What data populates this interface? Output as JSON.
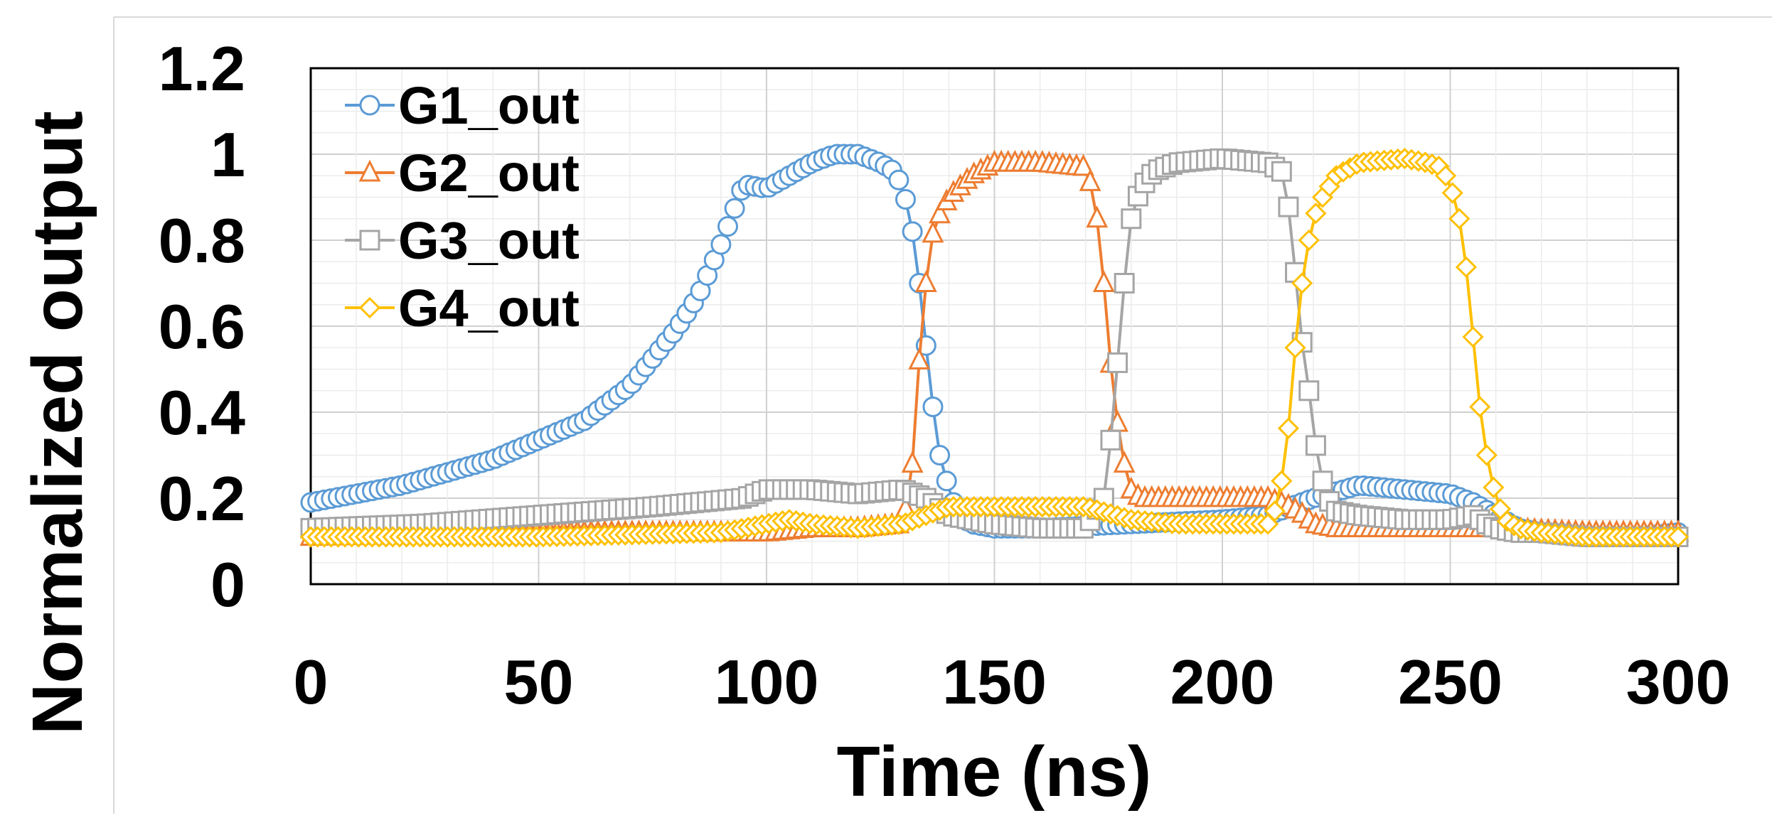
{
  "chart_data": {
    "type": "line",
    "title": "",
    "xlabel": "Time (ns)",
    "ylabel": "Normalized output",
    "xlim": [
      0,
      300
    ],
    "ylim": [
      0,
      1.2
    ],
    "xticks": [
      0,
      50,
      100,
      150,
      200,
      250,
      300
    ],
    "xtick_labels": [
      "0",
      "50",
      "100",
      "150",
      "200",
      "250",
      "300"
    ],
    "yticks": [
      0,
      0.2,
      0.4,
      0.6,
      0.8,
      1,
      1.2
    ],
    "ytick_labels": [
      "0",
      "0.2",
      "0.4",
      "0.6",
      "0.8",
      "1",
      "1.2"
    ],
    "grid": true,
    "legend_position": "top-left",
    "series": [
      {
        "name": "G1_out",
        "color": "#5b9bd5",
        "marker": "circle",
        "x": [
          0,
          20,
          40,
          60,
          70,
          80,
          85,
          90,
          95,
          100,
          105,
          110,
          115,
          120,
          125,
          128,
          130,
          132,
          134,
          136,
          138,
          140,
          142,
          145,
          150,
          160,
          180,
          200,
          210,
          215,
          220,
          230,
          240,
          250,
          255,
          260,
          265,
          270,
          280,
          290,
          300
        ],
        "y": [
          0.19,
          0.23,
          0.29,
          0.38,
          0.46,
          0.59,
          0.67,
          0.79,
          0.93,
          0.92,
          0.95,
          0.98,
          1.0,
          1.0,
          0.98,
          0.96,
          0.92,
          0.82,
          0.66,
          0.45,
          0.3,
          0.22,
          0.16,
          0.14,
          0.13,
          0.13,
          0.14,
          0.15,
          0.16,
          0.18,
          0.2,
          0.23,
          0.22,
          0.21,
          0.19,
          0.16,
          0.13,
          0.12,
          0.11,
          0.11,
          0.12
        ]
      },
      {
        "name": "G2_out",
        "color": "#ed7d31",
        "marker": "triangle",
        "x": [
          0,
          50,
          100,
          110,
          120,
          130,
          132,
          134,
          136,
          138,
          140,
          145,
          150,
          160,
          170,
          172,
          174,
          176,
          178,
          180,
          182,
          185,
          190,
          200,
          210,
          215,
          218,
          220,
          225,
          240,
          260,
          280,
          300
        ],
        "y": [
          0.11,
          0.12,
          0.12,
          0.13,
          0.13,
          0.14,
          0.28,
          0.6,
          0.8,
          0.86,
          0.9,
          0.95,
          0.98,
          0.98,
          0.97,
          0.9,
          0.7,
          0.45,
          0.3,
          0.22,
          0.2,
          0.2,
          0.2,
          0.2,
          0.2,
          0.18,
          0.16,
          0.14,
          0.13,
          0.13,
          0.13,
          0.12,
          0.12
        ]
      },
      {
        "name": "G3_out",
        "color": "#a5a5a5",
        "marker": "square",
        "x": [
          0,
          25,
          50,
          75,
          95,
          100,
          110,
          120,
          130,
          135,
          140,
          150,
          160,
          170,
          174,
          176,
          178,
          180,
          182,
          185,
          190,
          200,
          210,
          213,
          215,
          217,
          219,
          221,
          223,
          225,
          230,
          240,
          250,
          255,
          258,
          260,
          265,
          270,
          280,
          290,
          300
        ],
        "y": [
          0.13,
          0.14,
          0.16,
          0.18,
          0.2,
          0.22,
          0.22,
          0.21,
          0.22,
          0.2,
          0.16,
          0.14,
          0.13,
          0.13,
          0.2,
          0.38,
          0.65,
          0.85,
          0.92,
          0.96,
          0.98,
          0.99,
          0.98,
          0.96,
          0.85,
          0.6,
          0.45,
          0.28,
          0.2,
          0.17,
          0.16,
          0.15,
          0.15,
          0.16,
          0.14,
          0.13,
          0.12,
          0.12,
          0.11,
          0.11,
          0.11
        ]
      },
      {
        "name": "G4_out",
        "color": "#ffc000",
        "marker": "diamond",
        "x": [
          0,
          50,
          90,
          100,
          105,
          110,
          120,
          130,
          135,
          140,
          150,
          170,
          180,
          190,
          200,
          210,
          212,
          214,
          216,
          218,
          220,
          222,
          225,
          230,
          240,
          245,
          248,
          250,
          252,
          254,
          256,
          258,
          260,
          262,
          265,
          270,
          280,
          290,
          300
        ],
        "y": [
          0.11,
          0.11,
          0.12,
          0.14,
          0.15,
          0.14,
          0.13,
          0.14,
          0.16,
          0.18,
          0.18,
          0.18,
          0.15,
          0.14,
          0.14,
          0.14,
          0.18,
          0.3,
          0.55,
          0.75,
          0.85,
          0.9,
          0.95,
          0.98,
          0.99,
          0.98,
          0.97,
          0.93,
          0.85,
          0.7,
          0.45,
          0.3,
          0.2,
          0.15,
          0.13,
          0.12,
          0.11,
          0.11,
          0.11
        ]
      }
    ]
  }
}
